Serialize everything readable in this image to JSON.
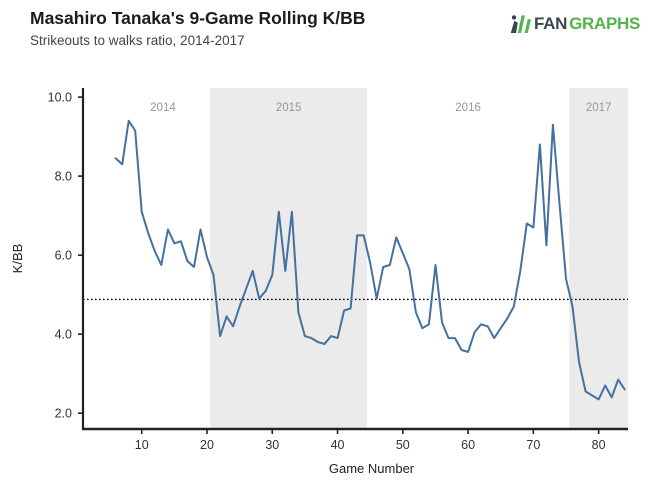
{
  "logo": {
    "fan": "FAN",
    "graphs": "GRAPHS",
    "icon": "fangraphs-bars-icon",
    "green": "#53b348",
    "dark": "#3a4750"
  },
  "chart_data": {
    "type": "line",
    "title": "Masahiro Tanaka's 9-Game Rolling K/BB",
    "subtitle": "Strikeouts to walks ratio, 2014-2017",
    "xlabel": "Game Number",
    "ylabel": "K/BB",
    "xlim": [
      1,
      84.5
    ],
    "ylim": [
      1.6,
      10.23
    ],
    "grid": false,
    "legend": "none",
    "xticks": {
      "values": [
        10,
        20,
        30,
        40,
        50,
        60,
        70,
        80
      ],
      "labels": [
        "10",
        "20",
        "30",
        "40",
        "50",
        "60",
        "70",
        "80"
      ]
    },
    "yticks": {
      "values": [
        2,
        4,
        6,
        8,
        10
      ],
      "labels": [
        "2.0",
        "4.0",
        "6.0",
        "8.0",
        "10.0"
      ]
    },
    "reference_line": {
      "y": 4.88,
      "style": "dotted",
      "color": "#000000"
    },
    "band_color": "#ebebeb",
    "year_label_color": "#979797",
    "axis_color": "#222222",
    "tick_label_color": "#333333",
    "seasons": [
      {
        "label": "2014",
        "start": 1,
        "end": 20.5,
        "shaded": false,
        "label_x": 13.25
      },
      {
        "label": "2015",
        "start": 20.5,
        "end": 44.5,
        "shaded": true,
        "label_x": 32.5
      },
      {
        "label": "2016",
        "start": 44.5,
        "end": 75.5,
        "shaded": false,
        "label_x": 60
      },
      {
        "label": "2017",
        "start": 75.5,
        "end": 84.5,
        "shaded": true,
        "label_x": 80
      }
    ],
    "series": [
      {
        "name": "9-game rolling K/BB",
        "color": "#44719f",
        "x": [
          6,
          7,
          8,
          9,
          10,
          11,
          12,
          13,
          14,
          15,
          16,
          17,
          18,
          19,
          20,
          21,
          22,
          23,
          24,
          25,
          26,
          27,
          28,
          29,
          30,
          31,
          32,
          33,
          34,
          35,
          36,
          37,
          38,
          39,
          40,
          41,
          42,
          43,
          44,
          45,
          46,
          47,
          48,
          49,
          50,
          51,
          52,
          53,
          54,
          55,
          56,
          57,
          58,
          59,
          60,
          61,
          62,
          63,
          64,
          65,
          66,
          67,
          68,
          69,
          70,
          71,
          72,
          73,
          74,
          75,
          76,
          77,
          78,
          79,
          80,
          81,
          82,
          83,
          84
        ],
        "y": [
          8.45,
          8.3,
          9.4,
          9.15,
          7.1,
          6.55,
          6.1,
          5.75,
          6.65,
          6.3,
          6.35,
          5.85,
          5.7,
          6.65,
          5.95,
          5.5,
          3.95,
          4.45,
          4.2,
          4.7,
          5.15,
          5.6,
          4.9,
          5.1,
          5.5,
          7.1,
          5.6,
          7.1,
          4.55,
          3.95,
          3.9,
          3.8,
          3.75,
          3.95,
          3.9,
          4.6,
          4.65,
          6.5,
          6.5,
          5.8,
          4.9,
          5.7,
          5.75,
          6.45,
          6.05,
          5.65,
          4.55,
          4.15,
          4.25,
          5.75,
          4.3,
          3.9,
          3.9,
          3.6,
          3.55,
          4.05,
          4.25,
          4.2,
          3.9,
          4.15,
          4.4,
          4.7,
          5.6,
          6.8,
          6.7,
          8.8,
          6.25,
          9.3,
          7.3,
          5.4,
          4.7,
          3.3,
          2.55,
          2.45,
          2.35,
          2.7,
          2.4,
          2.85,
          2.6
        ]
      }
    ]
  }
}
